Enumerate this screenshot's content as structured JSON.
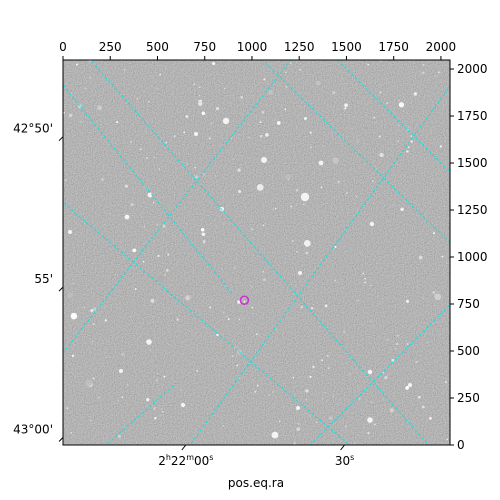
{
  "chart_data": {
    "type": "image",
    "title": "",
    "xlabel": "pos.eq.ra",
    "ylabel": "",
    "pixel_axes": {
      "x_range": [
        0,
        2048
      ],
      "y_range": [
        0,
        2048
      ],
      "top_ticks": [
        "0",
        "250",
        "500",
        "750",
        "1000",
        "1250",
        "1500",
        "1750",
        "2000"
      ],
      "right_ticks": [
        "0",
        "250",
        "500",
        "750",
        "1000",
        "1250",
        "1500",
        "1750",
        "2000"
      ]
    },
    "world_axes": {
      "bottom_ticks": [
        {
          "label_main": "2",
          "label_sup1": "h",
          "label_mid": "22",
          "label_sup2": "m",
          "label_end": "00",
          "label_sup3": "s",
          "px": 650
        },
        {
          "label_main": "30",
          "label_sup1": "s",
          "label_mid": "",
          "label_sup2": "",
          "label_end": "",
          "label_sup3": "",
          "px": 1490
        }
      ],
      "left_ticks": [
        {
          "label": "42°50'",
          "py": 1640
        },
        {
          "label": "55'",
          "py": 840
        },
        {
          "label": "43°00'",
          "py": 40
        }
      ]
    },
    "marker": {
      "x": 960,
      "y": 770,
      "color": "#cc33cc"
    },
    "grid_color": "#00e5e5",
    "grid": true,
    "image_colormap": "gray",
    "background_level": "#6e6e6e"
  }
}
